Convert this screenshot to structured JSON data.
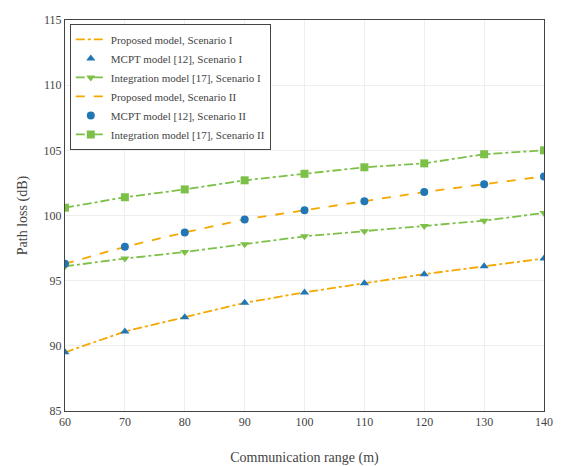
{
  "chart_data": {
    "type": "line",
    "x": [
      60,
      70,
      80,
      90,
      100,
      110,
      120,
      130,
      140
    ],
    "series": [
      {
        "name": "Proposed model, Scenario I",
        "color": "#F5A800",
        "line_style": "dashdot",
        "marker": "none",
        "values": [
          89.5,
          91.1,
          92.2,
          93.3,
          94.1,
          94.8,
          95.5,
          96.1,
          96.7
        ]
      },
      {
        "name": "MCPT model [12], Scenario I",
        "color": "#2177B5",
        "line_style": "none",
        "marker": "triangle-up",
        "values": [
          89.5,
          91.1,
          92.2,
          93.3,
          94.1,
          94.8,
          95.5,
          96.1,
          96.7
        ]
      },
      {
        "name": "Integration model [17], Scenario I",
        "color": "#7DC048",
        "line_style": "dashdot",
        "marker": "triangle-down",
        "values": [
          96.1,
          96.7,
          97.2,
          97.8,
          98.4,
          98.8,
          99.2,
          99.6,
          100.2
        ]
      },
      {
        "name": "Proposed model, Scenario II",
        "color": "#F5A800",
        "line_style": "dash",
        "marker": "none",
        "values": [
          96.3,
          97.6,
          98.7,
          99.7,
          100.4,
          101.1,
          101.8,
          102.4,
          103.0
        ]
      },
      {
        "name": "MCPT model [12], Scenario II",
        "color": "#2177B5",
        "line_style": "none",
        "marker": "circle",
        "values": [
          96.3,
          97.6,
          98.7,
          99.7,
          100.4,
          101.1,
          101.8,
          102.4,
          103.0
        ]
      },
      {
        "name": "Integration model [17], Scenario II",
        "color": "#7DC048",
        "line_style": "dashdot",
        "marker": "square",
        "values": [
          100.6,
          101.4,
          102.0,
          102.7,
          103.2,
          103.7,
          104.0,
          104.7,
          105.0
        ]
      }
    ],
    "x_label": "Communication range (m)",
    "y_label": "Path loss (dB)",
    "xlim": [
      60,
      140
    ],
    "ylim": [
      85,
      115
    ],
    "xticks": [
      60,
      70,
      80,
      90,
      100,
      110,
      120,
      130,
      140
    ],
    "yticks": [
      85,
      90,
      95,
      100,
      105,
      110,
      115
    ],
    "grid": true,
    "legend": "upper left"
  }
}
